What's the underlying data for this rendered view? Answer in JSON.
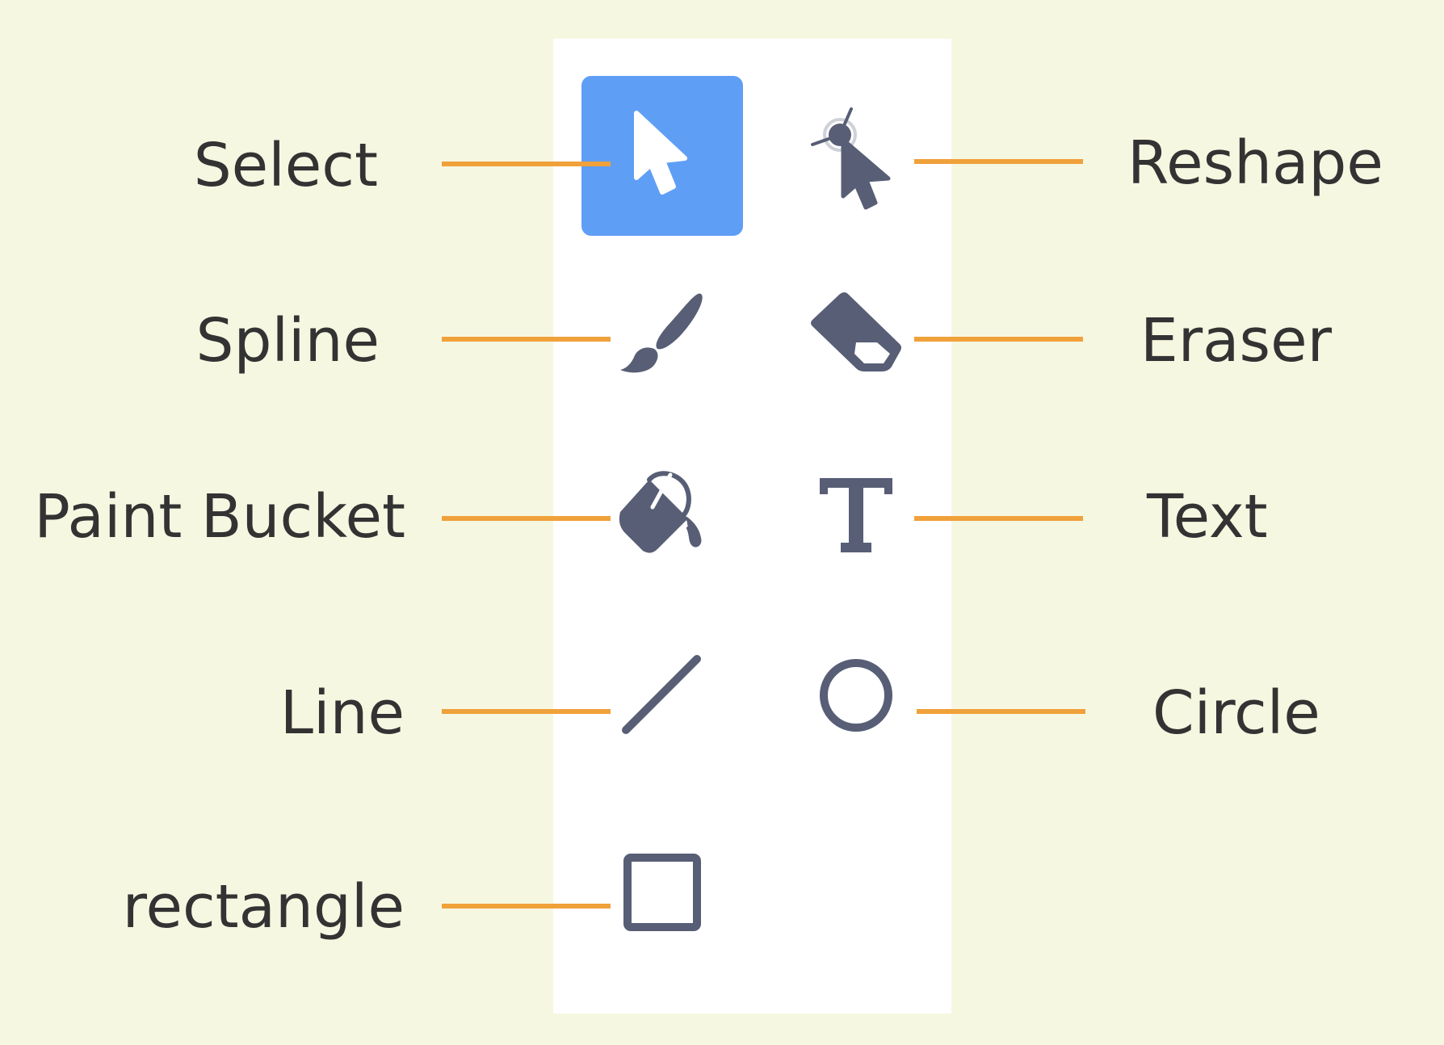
{
  "colors": {
    "page_background": "#f6f7e1",
    "panel_background": "#ffffff",
    "active_tool": "#5f9ef5",
    "icon": "#575e75",
    "connector": "#f0a13a",
    "label_text": "#333333"
  },
  "tools": {
    "select": {
      "label": "Select",
      "icon": "arrow-pointer-icon",
      "active": true
    },
    "reshape": {
      "label": "Reshape",
      "icon": "reshape-icon",
      "active": false
    },
    "spline": {
      "label": "Spline",
      "icon": "brush-icon",
      "active": false
    },
    "eraser": {
      "label": "Eraser",
      "icon": "eraser-icon",
      "active": false
    },
    "paint_bucket": {
      "label": "Paint Bucket",
      "icon": "paint-bucket-icon",
      "active": false
    },
    "text": {
      "label": "Text",
      "icon": "text-t-icon",
      "active": false
    },
    "line": {
      "label": "Line",
      "icon": "line-icon",
      "active": false
    },
    "circle": {
      "label": "Circle",
      "icon": "circle-icon",
      "active": false
    },
    "rectangle": {
      "label": "rectangle",
      "icon": "square-icon",
      "active": false
    }
  }
}
